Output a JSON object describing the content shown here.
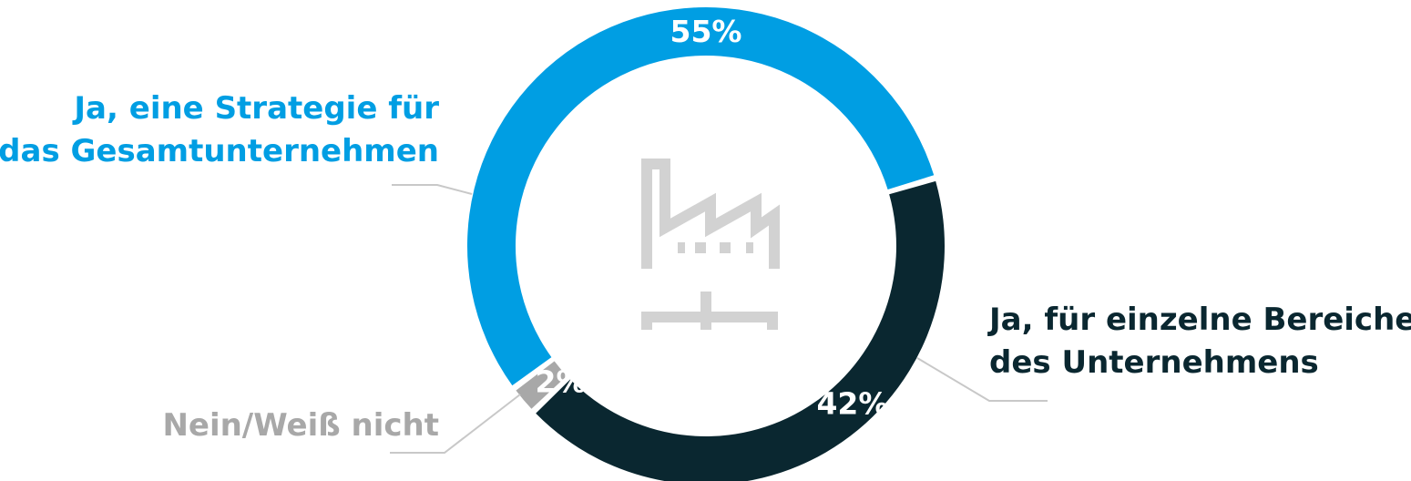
{
  "chart_data": {
    "type": "pie",
    "variant": "donut",
    "categories": [
      "Ja, eine Strategie für das Gesamtunternehmen",
      "Ja, für einzelne Bereiche des Unternehmens",
      "Nein/Weiß nicht"
    ],
    "values": [
      55,
      42,
      2
    ],
    "value_labels": [
      "55%",
      "42%",
      "2%"
    ],
    "label_lines": [
      [
        "Ja, eine Strategie für",
        "das Gesamtunternehmen"
      ],
      [
        "Ja, für einzelne Bereiche",
        "des Unternehmens"
      ],
      [
        "Nein/Weiß nicht"
      ]
    ],
    "colors": [
      "#009EE3",
      "#0A2730",
      "#A8A8A8"
    ],
    "label_colors": [
      "#009EE3",
      "#0A2730",
      "#A8A8A8"
    ],
    "center_icon": "factory-icon",
    "icon_color": "#D2D2D2",
    "leader_line_color": "#C8C8C8"
  }
}
